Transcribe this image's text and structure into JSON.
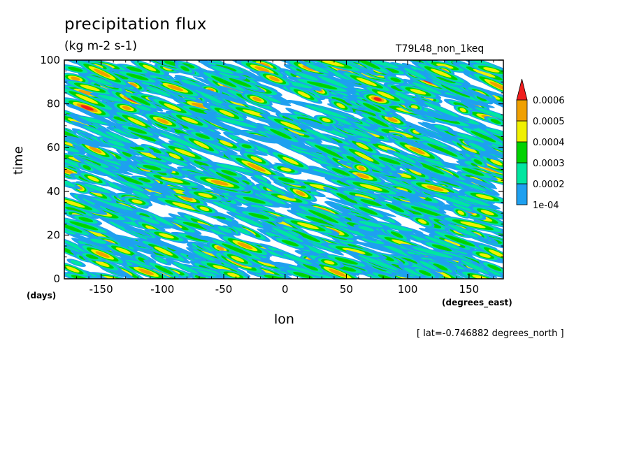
{
  "chart_data": {
    "type": "heatmap",
    "title": "precipitation flux",
    "units": "(kg m-2 s-1)",
    "run_id": "T79L48_non_1keq",
    "xlabel": "lon",
    "xunit": "(degrees_east)",
    "ylabel": "time",
    "yunit": "(days)",
    "note": "[ lat=-0.746882 degrees_north ]",
    "xlim": [
      -180,
      178
    ],
    "ylim": [
      0,
      100
    ],
    "xticks": [
      -150,
      -100,
      -50,
      0,
      50,
      100,
      150
    ],
    "xtick_labels": [
      "-150",
      "-100",
      "-50",
      "0",
      "50",
      "100",
      "150"
    ],
    "yticks": [
      0,
      20,
      40,
      60,
      80,
      100
    ],
    "ytick_labels": [
      "0",
      "20",
      "40",
      "60",
      "80",
      "100"
    ],
    "levels": [
      0.0001,
      0.0002,
      0.0003,
      0.0004,
      0.0005,
      0.0006
    ],
    "level_labels": [
      "1e-04",
      "0.0002",
      "0.0003",
      "0.0004",
      "0.0005",
      "0.0006"
    ],
    "colors": [
      "#1ea0f0",
      "#00e6a0",
      "#00d200",
      "#f0f000",
      "#f0a000",
      "#f01e1e"
    ],
    "colorbar_extend": "max"
  }
}
